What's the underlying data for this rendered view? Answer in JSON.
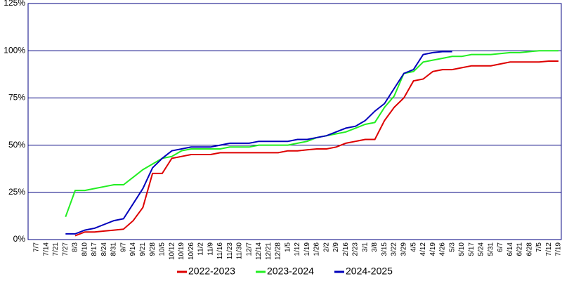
{
  "chart_data": {
    "type": "line",
    "categories": [
      "7/7",
      "7/14",
      "7/21",
      "7/27",
      "8/3",
      "8/10",
      "8/17",
      "8/24",
      "8/31",
      "9/7",
      "9/14",
      "9/21",
      "9/28",
      "10/5",
      "10/12",
      "10/19",
      "10/26",
      "11/2",
      "11/9",
      "11/16",
      "11/23",
      "11/30",
      "12/7",
      "12/14",
      "12/21",
      "12/28",
      "1/5",
      "1/12",
      "1/19",
      "1/26",
      "2/2",
      "2/9",
      "2/16",
      "2/23",
      "3/1",
      "3/8",
      "3/15",
      "3/22",
      "3/29",
      "4/5",
      "4/12",
      "4/19",
      "4/26",
      "5/3",
      "5/10",
      "5/17",
      "5/24",
      "5/31",
      "6/7",
      "6/14",
      "6/21",
      "6/28",
      "7/5",
      "7/12",
      "7/19"
    ],
    "series": [
      {
        "name": "2022-2023",
        "color": "#dd0000",
        "values": [
          null,
          null,
          null,
          null,
          2,
          4,
          4,
          4.5,
          5,
          5.5,
          10,
          17,
          35,
          35,
          43,
          44,
          45,
          45,
          45,
          46,
          46,
          46,
          46,
          46,
          46,
          46,
          47,
          47,
          47.5,
          48,
          48,
          49,
          51,
          52,
          53,
          53,
          63,
          70,
          75,
          84,
          85,
          89,
          90,
          90,
          91,
          92,
          92,
          92,
          93,
          94,
          94,
          94,
          94,
          94.5,
          94.5
        ]
      },
      {
        "name": "2023-2024",
        "color": "#22ee22",
        "values": [
          null,
          null,
          null,
          12,
          26,
          26,
          27,
          28,
          29,
          29,
          33,
          37,
          40,
          43,
          44,
          47,
          48,
          48,
          48,
          48,
          49,
          49,
          49,
          50,
          50,
          50,
          50,
          51,
          52,
          54,
          55,
          56,
          57,
          59,
          61,
          62,
          70,
          76,
          88,
          89,
          94,
          95,
          96,
          97,
          97,
          98,
          98,
          98,
          98.5,
          99,
          99,
          99.5,
          100,
          100,
          100
        ]
      },
      {
        "name": "2024-2025",
        "color": "#0000bb",
        "values": [
          null,
          null,
          null,
          3,
          3,
          5,
          6,
          8,
          10,
          11,
          19,
          27,
          38,
          43,
          47,
          48,
          49,
          49,
          49,
          50,
          51,
          51,
          51,
          52,
          52,
          52,
          52,
          53,
          53,
          54,
          55,
          57,
          59,
          60,
          63,
          68,
          72,
          80,
          88,
          90,
          98,
          99,
          99.5,
          99.5,
          null,
          null,
          null,
          null,
          null,
          null,
          null,
          null,
          null,
          null,
          null
        ]
      }
    ],
    "ylim": [
      0,
      125
    ],
    "yticks": [
      {
        "value": 0,
        "label": "0%"
      },
      {
        "value": 25,
        "label": "25%"
      },
      {
        "value": 50,
        "label": "50%"
      },
      {
        "value": 75,
        "label": "75%"
      },
      {
        "value": 100,
        "label": "100%"
      },
      {
        "value": 125,
        "label": "125%"
      }
    ],
    "grid": true
  }
}
